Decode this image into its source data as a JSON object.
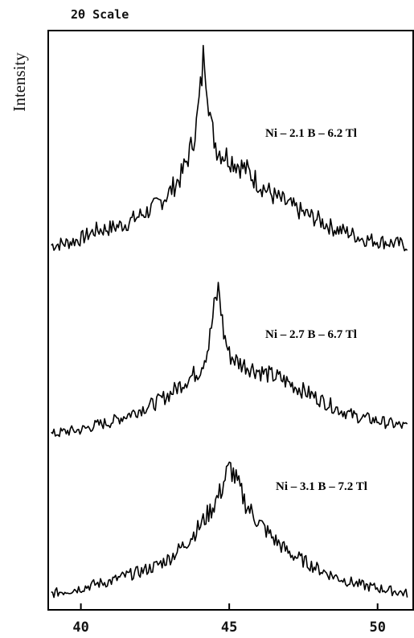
{
  "chart_data": {
    "type": "line",
    "title": "2θ Scale",
    "xlabel": "",
    "ylabel": "Intensity",
    "xlim": [
      38.9,
      51.2
    ],
    "x_ticks": [
      {
        "value": 40,
        "label": "40"
      },
      {
        "value": 45,
        "label": "45"
      },
      {
        "value": 50,
        "label": "50"
      }
    ],
    "grid": false,
    "series": [
      {
        "name": "Ni – 2.1 B – 6.2 Tl",
        "points": [
          [
            39.0,
            0.05
          ],
          [
            39.5,
            0.06
          ],
          [
            40.0,
            0.08
          ],
          [
            40.5,
            0.12
          ],
          [
            41.0,
            0.13
          ],
          [
            41.5,
            0.15
          ],
          [
            42.0,
            0.19
          ],
          [
            42.5,
            0.23
          ],
          [
            43.0,
            0.3
          ],
          [
            43.4,
            0.38
          ],
          [
            43.7,
            0.5
          ],
          [
            43.9,
            0.62
          ],
          [
            44.05,
            0.8
          ],
          [
            44.15,
            0.97
          ],
          [
            44.25,
            0.82
          ],
          [
            44.4,
            0.6
          ],
          [
            44.6,
            0.5
          ],
          [
            44.9,
            0.47
          ],
          [
            45.2,
            0.44
          ],
          [
            45.6,
            0.4
          ],
          [
            46.0,
            0.34
          ],
          [
            46.5,
            0.28
          ],
          [
            47.0,
            0.24
          ],
          [
            47.5,
            0.2
          ],
          [
            48.0,
            0.17
          ],
          [
            48.5,
            0.13
          ],
          [
            49.0,
            0.11
          ],
          [
            49.5,
            0.08
          ],
          [
            50.0,
            0.07
          ],
          [
            50.5,
            0.06
          ],
          [
            51.0,
            0.05
          ]
        ]
      },
      {
        "name": "Ni – 2.7 B – 6.7 Tl",
        "points": [
          [
            39.0,
            0.04
          ],
          [
            39.5,
            0.06
          ],
          [
            40.0,
            0.07
          ],
          [
            40.5,
            0.1
          ],
          [
            41.0,
            0.12
          ],
          [
            41.5,
            0.16
          ],
          [
            42.0,
            0.2
          ],
          [
            42.5,
            0.24
          ],
          [
            43.0,
            0.3
          ],
          [
            43.5,
            0.38
          ],
          [
            44.0,
            0.45
          ],
          [
            44.3,
            0.6
          ],
          [
            44.5,
            0.85
          ],
          [
            44.65,
            0.98
          ],
          [
            44.8,
            0.7
          ],
          [
            45.0,
            0.55
          ],
          [
            45.3,
            0.5
          ],
          [
            45.7,
            0.47
          ],
          [
            46.2,
            0.43
          ],
          [
            46.7,
            0.4
          ],
          [
            47.2,
            0.35
          ],
          [
            47.7,
            0.3
          ],
          [
            48.2,
            0.25
          ],
          [
            48.7,
            0.2
          ],
          [
            49.2,
            0.16
          ],
          [
            49.7,
            0.14
          ],
          [
            50.2,
            0.12
          ],
          [
            50.7,
            0.1
          ],
          [
            51.0,
            0.09
          ]
        ]
      },
      {
        "name": "Ni – 3.1 B – 7.2 Tl",
        "points": [
          [
            39.0,
            0.06
          ],
          [
            39.5,
            0.08
          ],
          [
            40.0,
            0.1
          ],
          [
            40.5,
            0.13
          ],
          [
            41.0,
            0.15
          ],
          [
            41.5,
            0.19
          ],
          [
            42.0,
            0.22
          ],
          [
            42.5,
            0.26
          ],
          [
            43.0,
            0.32
          ],
          [
            43.5,
            0.42
          ],
          [
            44.0,
            0.55
          ],
          [
            44.4,
            0.68
          ],
          [
            44.7,
            0.8
          ],
          [
            44.9,
            0.93
          ],
          [
            45.05,
            0.98
          ],
          [
            45.3,
            0.85
          ],
          [
            45.6,
            0.7
          ],
          [
            46.0,
            0.58
          ],
          [
            46.5,
            0.46
          ],
          [
            47.0,
            0.36
          ],
          [
            47.5,
            0.3
          ],
          [
            48.0,
            0.24
          ],
          [
            48.5,
            0.19
          ],
          [
            49.0,
            0.15
          ],
          [
            49.5,
            0.12
          ],
          [
            50.0,
            0.1
          ],
          [
            50.5,
            0.08
          ],
          [
            51.0,
            0.06
          ]
        ]
      }
    ]
  }
}
